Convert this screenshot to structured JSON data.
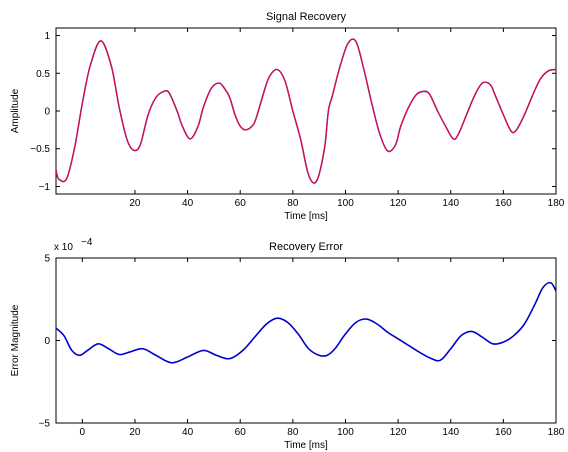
{
  "chart_data": [
    {
      "type": "line",
      "title": "Signal Recovery",
      "xlabel": "Time [ms]",
      "ylabel": "Amplitude",
      "xlim": [
        -10,
        180
      ],
      "ylim": [
        -1.1,
        1.1
      ],
      "xticks": [
        20,
        40,
        60,
        80,
        100,
        120,
        140,
        160,
        180
      ],
      "yticks": [
        -1,
        -0.5,
        0,
        0.5,
        1
      ],
      "grid": false,
      "series": [
        {
          "color": "#3030ff",
          "x": [
            -10,
            -9,
            -6,
            -3,
            0,
            3,
            7,
            11,
            14,
            17,
            19.5,
            22,
            25,
            28,
            31,
            33,
            36,
            38,
            41,
            44,
            46,
            49,
            52,
            54,
            56,
            58,
            60,
            62,
            64.5,
            66,
            69,
            71,
            74,
            77,
            80,
            83,
            86,
            89,
            92,
            93.5,
            95,
            98,
            101,
            104,
            107,
            110,
            113,
            116,
            119,
            121,
            124,
            127,
            130,
            132,
            135,
            138,
            141,
            143,
            146,
            149,
            152,
            155,
            157,
            160,
            163,
            165,
            168,
            171,
            174,
            177,
            180
          ],
          "y": [
            -0.78,
            -0.9,
            -0.9,
            -0.5,
            0.1,
            0.6,
            0.93,
            0.6,
            0.05,
            -0.38,
            -0.52,
            -0.45,
            -0.05,
            0.18,
            0.26,
            0.24,
            0.0,
            -0.2,
            -0.37,
            -0.2,
            0.05,
            0.3,
            0.37,
            0.3,
            0.18,
            -0.05,
            -0.2,
            -0.25,
            -0.2,
            -0.1,
            0.25,
            0.45,
            0.55,
            0.4,
            0.0,
            -0.38,
            -0.85,
            -0.93,
            -0.5,
            0.0,
            0.2,
            0.6,
            0.9,
            0.92,
            0.55,
            0.1,
            -0.3,
            -0.53,
            -0.45,
            -0.2,
            0.05,
            0.22,
            0.26,
            0.22,
            0.0,
            -0.2,
            -0.37,
            -0.3,
            -0.05,
            0.2,
            0.37,
            0.35,
            0.2,
            -0.05,
            -0.27,
            -0.25,
            -0.05,
            0.2,
            0.42,
            0.53,
            0.55
          ]
        },
        {
          "color": "#d01050",
          "x": [
            -10,
            -9,
            -6,
            -3,
            0,
            3,
            7,
            11,
            14,
            17,
            19.5,
            22,
            25,
            28,
            31,
            33,
            36,
            38,
            41,
            44,
            46,
            49,
            52,
            54,
            56,
            58,
            60,
            62,
            64.5,
            66,
            69,
            71,
            74,
            77,
            80,
            83,
            86,
            89,
            92,
            93.5,
            95,
            98,
            101,
            104,
            107,
            110,
            113,
            116,
            119,
            121,
            124,
            127,
            130,
            132,
            135,
            138,
            141,
            143,
            146,
            149,
            152,
            155,
            157,
            160,
            163,
            165,
            168,
            171,
            174,
            177,
            180
          ],
          "y": [
            -0.78,
            -0.9,
            -0.9,
            -0.5,
            0.1,
            0.6,
            0.93,
            0.6,
            0.05,
            -0.38,
            -0.52,
            -0.45,
            -0.05,
            0.18,
            0.26,
            0.24,
            0.0,
            -0.2,
            -0.37,
            -0.2,
            0.05,
            0.3,
            0.37,
            0.3,
            0.18,
            -0.05,
            -0.2,
            -0.25,
            -0.2,
            -0.1,
            0.25,
            0.45,
            0.55,
            0.4,
            0.0,
            -0.38,
            -0.85,
            -0.93,
            -0.5,
            0.0,
            0.2,
            0.6,
            0.9,
            0.92,
            0.55,
            0.1,
            -0.3,
            -0.53,
            -0.45,
            -0.2,
            0.05,
            0.22,
            0.26,
            0.22,
            0.0,
            -0.2,
            -0.37,
            -0.3,
            -0.05,
            0.2,
            0.37,
            0.35,
            0.2,
            -0.05,
            -0.27,
            -0.25,
            -0.05,
            0.2,
            0.42,
            0.53,
            0.55
          ]
        }
      ]
    },
    {
      "type": "line",
      "title": "Recovery Error",
      "xlabel": "Time [ms]",
      "ylabel": "Error Magnitude",
      "scale_text": "x 10",
      "scale_exponent": "−4",
      "xlim": [
        -10,
        180
      ],
      "ylim": [
        -5,
        5
      ],
      "xticks": [
        0,
        20,
        40,
        60,
        80,
        100,
        120,
        140,
        160,
        180
      ],
      "yticks": [
        -5,
        0,
        5
      ],
      "grid": false,
      "series": [
        {
          "color": "#0000cc",
          "x": [
            -10,
            -7,
            -4,
            -1,
            2,
            6,
            10,
            14,
            18,
            23,
            28,
            34,
            40,
            46,
            51,
            56,
            61,
            66,
            70,
            74,
            78,
            82,
            86,
            90,
            93,
            96,
            100,
            104,
            108,
            112,
            116,
            120,
            124,
            128,
            132,
            136,
            140,
            144,
            148,
            152,
            156,
            160,
            164,
            168,
            172,
            175,
            178,
            180
          ],
          "y": [
            0.75,
            0.3,
            -0.6,
            -0.9,
            -0.6,
            -0.2,
            -0.5,
            -0.85,
            -0.7,
            -0.5,
            -0.9,
            -1.35,
            -1.0,
            -0.6,
            -0.9,
            -1.1,
            -0.6,
            0.3,
            1.0,
            1.35,
            1.1,
            0.4,
            -0.5,
            -0.9,
            -0.9,
            -0.5,
            0.4,
            1.1,
            1.3,
            1.0,
            0.5,
            0.1,
            -0.3,
            -0.7,
            -1.05,
            -1.2,
            -0.5,
            0.3,
            0.55,
            0.2,
            -0.2,
            -0.1,
            0.3,
            1.0,
            2.2,
            3.2,
            3.5,
            3.0
          ]
        }
      ]
    }
  ]
}
